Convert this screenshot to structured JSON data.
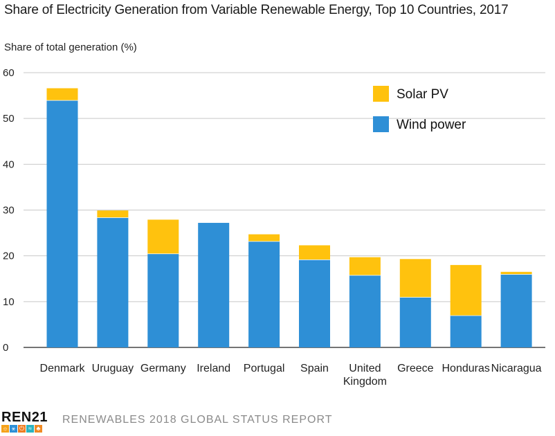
{
  "title": "Share of Electricity Generation from Variable Renewable Energy, Top 10 Countries, 2017",
  "chart_data": {
    "type": "bar",
    "stacked": true,
    "title": "Share of Electricity Generation from Variable Renewable Energy, Top 10 Countries, 2017",
    "ylabel": "Share of total generation (%)",
    "xlabel": "",
    "ylim": [
      0,
      60
    ],
    "yticks": [
      "0",
      "10",
      "20",
      "30",
      "40",
      "50",
      "60"
    ],
    "categories": [
      "Denmark",
      "Uruguay",
      "Germany",
      "Ireland",
      "Portugal",
      "Spain",
      "United Kingdom",
      "Greece",
      "Honduras",
      "Nicaragua"
    ],
    "category_lines": [
      [
        "Denmark"
      ],
      [
        "Uruguay"
      ],
      [
        "Germany"
      ],
      [
        "Ireland"
      ],
      [
        "Portugal"
      ],
      [
        "Spain"
      ],
      [
        "United",
        "Kingdom"
      ],
      [
        "Greece"
      ],
      [
        "Honduras"
      ],
      [
        "Nicaragua"
      ]
    ],
    "series": [
      {
        "name": "Wind power",
        "color": "#2e8fd6",
        "values": [
          54,
          28.4,
          20.5,
          27.2,
          23.2,
          19.2,
          15.8,
          11,
          7,
          16
        ]
      },
      {
        "name": "Solar PV",
        "color": "#ffc20e",
        "values": [
          2.6,
          1.5,
          7.4,
          0,
          1.5,
          3.1,
          3.9,
          8.3,
          11,
          0.5
        ]
      }
    ],
    "legend": [
      "Solar PV",
      "Wind power"
    ],
    "legend_position": "top-right",
    "grid": true
  },
  "footer": {
    "logo": "REN21",
    "report": "RENEWABLES 2018 GLOBAL STATUS REPORT"
  }
}
